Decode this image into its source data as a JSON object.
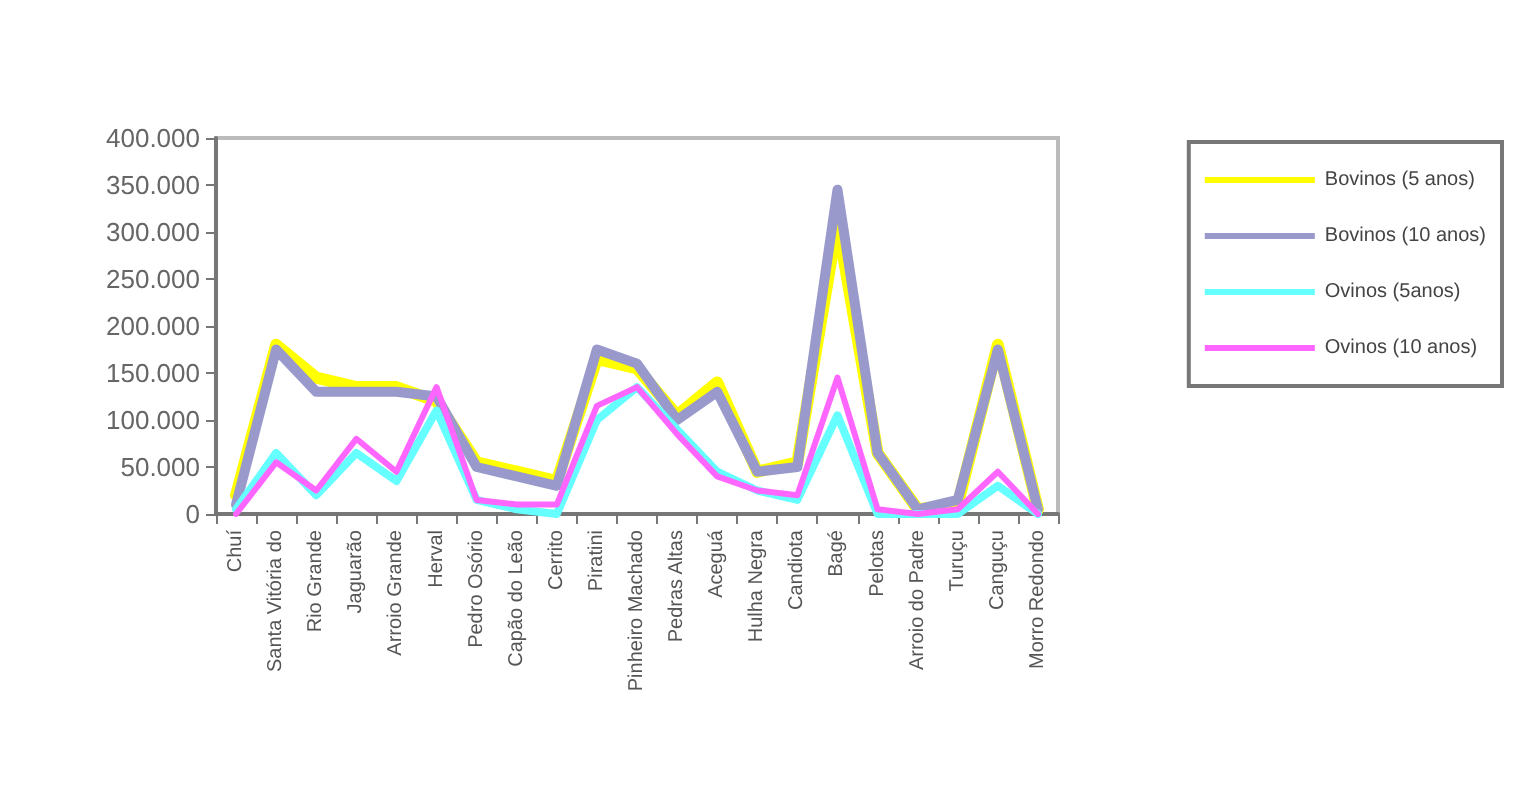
{
  "chart_data": {
    "type": "line",
    "categories": [
      "Chuí",
      "Santa Vitória do",
      "Rio Grande",
      "Jaguarão",
      "Arroio Grande",
      "Herval",
      "Pedro Osório",
      "Capão do Leão",
      "Cerrito",
      "Piratini",
      "Pinheiro Machado",
      "Pedras Altas",
      "Aceguá",
      "Hulha Negra",
      "Candiota",
      "Bagé",
      "Pelotas",
      "Arroio do Padre",
      "Turuçu",
      "Canguçu",
      "Morro Redondo"
    ],
    "series": [
      {
        "name": "Bovinos (5 anos)",
        "color": "#ffff00",
        "values": [
          20000,
          180000,
          145000,
          135000,
          135000,
          120000,
          55000,
          45000,
          35000,
          165000,
          155000,
          105000,
          140000,
          45000,
          55000,
          310000,
          65000,
          5000,
          10000,
          180000,
          5000
        ]
      },
      {
        "name": "Bovinos (10 anos)",
        "color": "#9999cc",
        "values": [
          10000,
          175000,
          130000,
          130000,
          130000,
          125000,
          50000,
          40000,
          30000,
          175000,
          160000,
          100000,
          130000,
          45000,
          50000,
          345000,
          65000,
          5000,
          15000,
          175000,
          5000
        ]
      },
      {
        "name": "Ovinos (5anos)",
        "color": "#66ffff",
        "values": [
          5000,
          65000,
          20000,
          65000,
          35000,
          110000,
          15000,
          5000,
          0,
          100000,
          135000,
          90000,
          45000,
          25000,
          15000,
          105000,
          0,
          0,
          0,
          30000,
          0
        ]
      },
      {
        "name": "Ovinos (10 anos)",
        "color": "#ff66ff",
        "values": [
          0,
          55000,
          25000,
          80000,
          45000,
          135000,
          15000,
          10000,
          10000,
          115000,
          135000,
          85000,
          40000,
          25000,
          20000,
          145000,
          5000,
          0,
          5000,
          45000,
          0
        ]
      }
    ],
    "ylim": [
      0,
      400000
    ],
    "yticks": [
      {
        "value": 0,
        "label": "0"
      },
      {
        "value": 50000,
        "label": "50.000"
      },
      {
        "value": 100000,
        "label": "100.000"
      },
      {
        "value": 150000,
        "label": "150.000"
      },
      {
        "value": 200000,
        "label": "200.000"
      },
      {
        "value": 250000,
        "label": "250.000"
      },
      {
        "value": 300000,
        "label": "300.000"
      },
      {
        "value": 350000,
        "label": "350.000"
      },
      {
        "value": 400000,
        "label": "400.000"
      }
    ],
    "grid": false,
    "legend": "right",
    "marker": "none",
    "line_style": "solid"
  }
}
